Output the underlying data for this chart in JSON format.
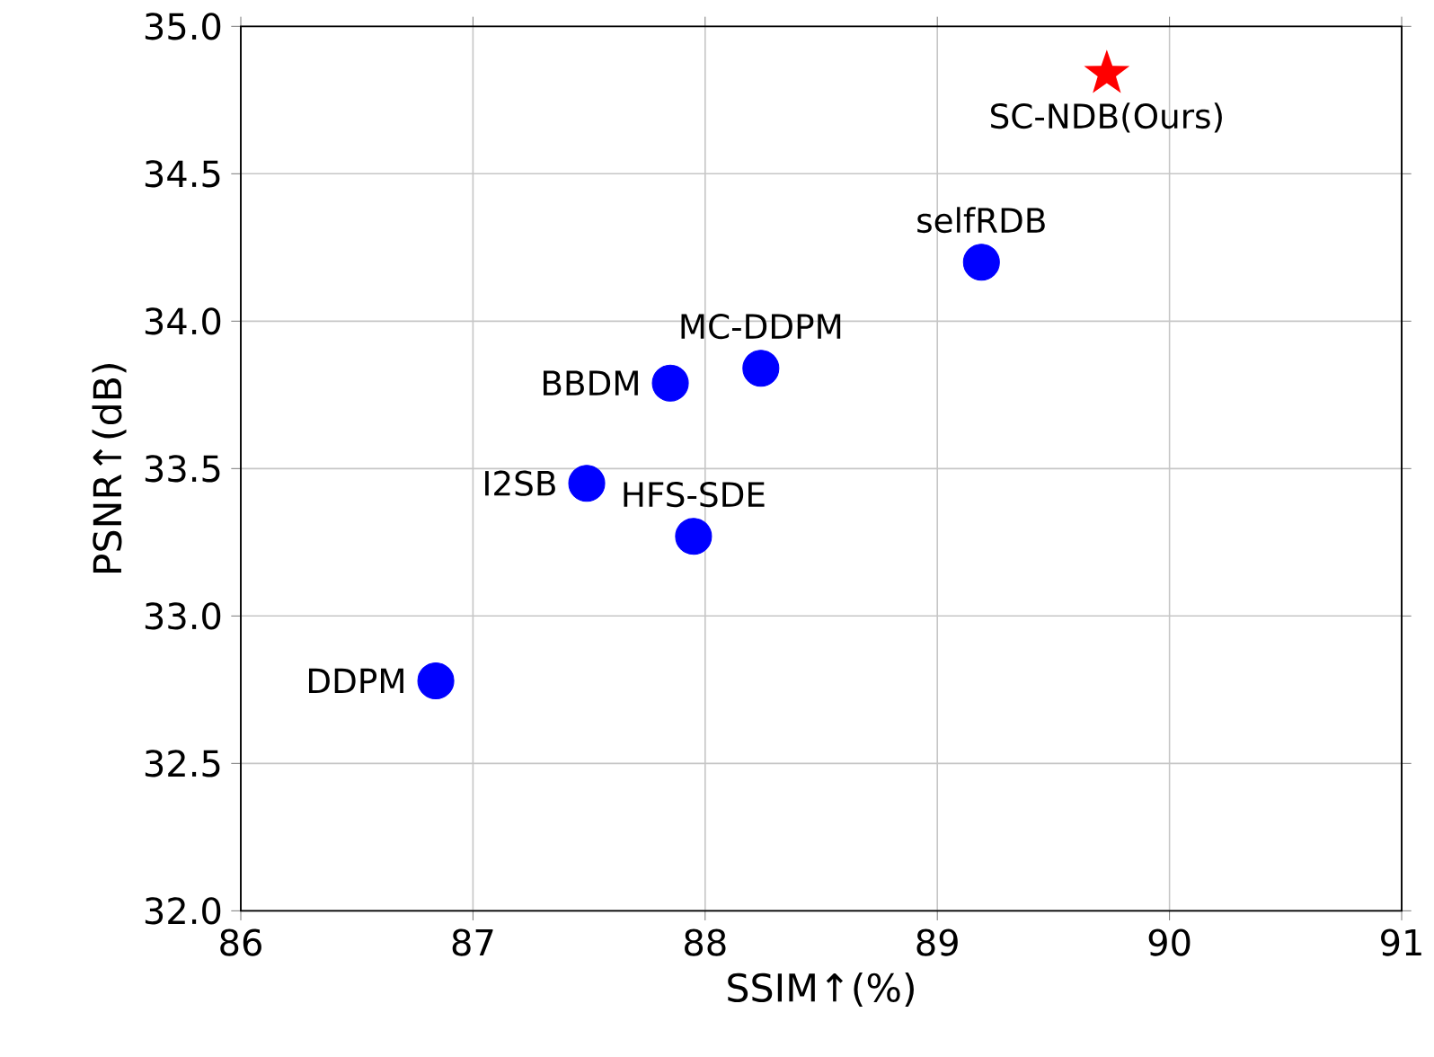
{
  "chart_data": {
    "type": "scatter",
    "xlabel": "SSIM↑(%)",
    "ylabel": "PSNR↑(dB)",
    "xlim": [
      86,
      91
    ],
    "ylim": [
      32,
      35
    ],
    "xticks": [
      86,
      87,
      88,
      89,
      90,
      91
    ],
    "yticks": [
      {
        "value": 32,
        "label": "32.0"
      },
      {
        "value": 32.5,
        "label": "32.5"
      },
      {
        "value": 33,
        "label": "33.0"
      },
      {
        "value": 33.5,
        "label": "33.5"
      },
      {
        "value": 34,
        "label": "34.0"
      },
      {
        "value": 34.5,
        "label": "34.5"
      },
      {
        "value": 35,
        "label": "35.0"
      }
    ],
    "grid": true,
    "series": [
      {
        "color": "#0000ff",
        "marker": "circle",
        "x": [
          86.84,
          87.49,
          87.85,
          87.95,
          88.24,
          89.19
        ],
        "values": [
          32.78,
          33.45,
          33.79,
          33.27,
          33.84,
          34.2
        ]
      },
      {
        "color": "#ff0000",
        "marker": "star",
        "x": [
          89.73
        ],
        "values": [
          34.84
        ]
      }
    ],
    "annotations": [
      {
        "text": "DDPM",
        "x": 86.84,
        "y": 32.78
      },
      {
        "text": "I2SB",
        "x": 87.49,
        "y": 33.45
      },
      {
        "text": "BBDM",
        "x": 87.85,
        "y": 33.79
      },
      {
        "text": "HFS-SDE",
        "x": 87.95,
        "y": 33.27
      },
      {
        "text": "MC-DDPM",
        "x": 88.24,
        "y": 33.84
      },
      {
        "text": "selfRDB",
        "x": 89.19,
        "y": 34.2
      },
      {
        "text": "SC-NDB(Ours)",
        "x": 89.73,
        "y": 34.84
      }
    ]
  }
}
